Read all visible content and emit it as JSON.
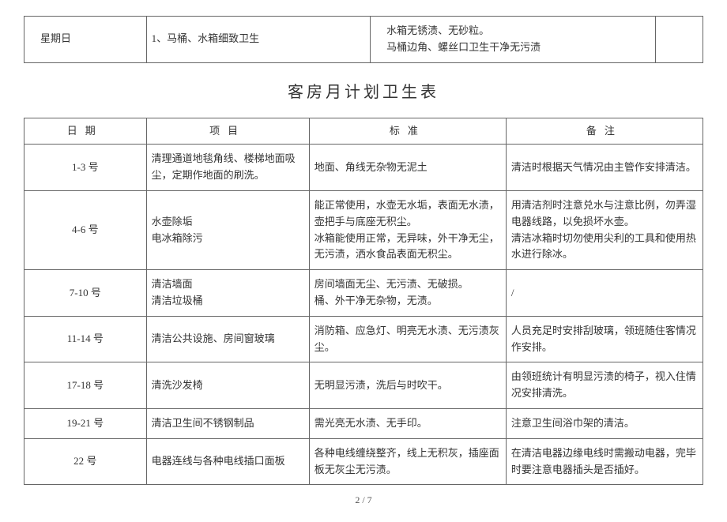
{
  "top_table": {
    "col1": "星期日",
    "col2": "1、马桶、水箱细致卫生",
    "col3": "水箱无锈渍、无砂粒。\n马桶边角、螺丝口卫生干净无污渍"
  },
  "title": "客房月计划卫生表",
  "headers": {
    "date": "日期",
    "item": "项目",
    "standard": "标准",
    "note": "备注"
  },
  "rows": [
    {
      "date": "1-3 号",
      "item": "清理通道地毯角线、楼梯地面吸尘，定期作地面的刷洗。",
      "standard": "地面、角线无杂物无泥土",
      "note": "清洁时根据天气情况由主管作安排清洁。"
    },
    {
      "date": "4-6 号",
      "item": "水壶除垢\n电冰箱除污",
      "standard": "能正常使用，水壶无水垢，表面无水渍，壶把手与底座无积尘。\n冰箱能使用正常，无异味，外干净无尘，无污渍，洒水食品表面无积尘。",
      "note": "用清洁剂时注意兑水与注意比例，勿弄湿电器线路，以免损坏水壶。\n清洁冰箱时切勿使用尖利的工具和使用热水进行除冰。"
    },
    {
      "date": "7-10 号",
      "item": "清洁墙面\n清洁垃圾桶",
      "standard": "房间墙面无尘、无污渍、无破损。\n桶、外干净无杂物，无渍。",
      "note": "/"
    },
    {
      "date": "11-14 号",
      "item": "清洁公共设施、房间窗玻璃",
      "standard": "消防箱、应急灯、明亮无水渍、无污渍灰尘。",
      "note": "人员充足时安排刮玻璃，领班随住客情况作安排。"
    },
    {
      "date": "17-18 号",
      "item": "清洗沙发椅",
      "standard": "无明显污渍，洗后与时吹干。",
      "note": "由领班统计有明显污渍的椅子，视入住情况安排清洗。"
    },
    {
      "date": "19-21 号",
      "item": "清洁卫生间不锈钢制品",
      "standard": "需光亮无水渍、无手印。",
      "note": "注意卫生间浴巾架的清洁。"
    },
    {
      "date": "22 号",
      "item": "电器连线与各种电线插口面板",
      "standard": "各种电线缠绕整齐，线上无积灰，插座面板无灰尘无污渍。",
      "note": "在清洁电器边缘电线时需搬动电器，完毕时要注意电器插头是否插好。"
    }
  ],
  "page_num": "2 / 7"
}
